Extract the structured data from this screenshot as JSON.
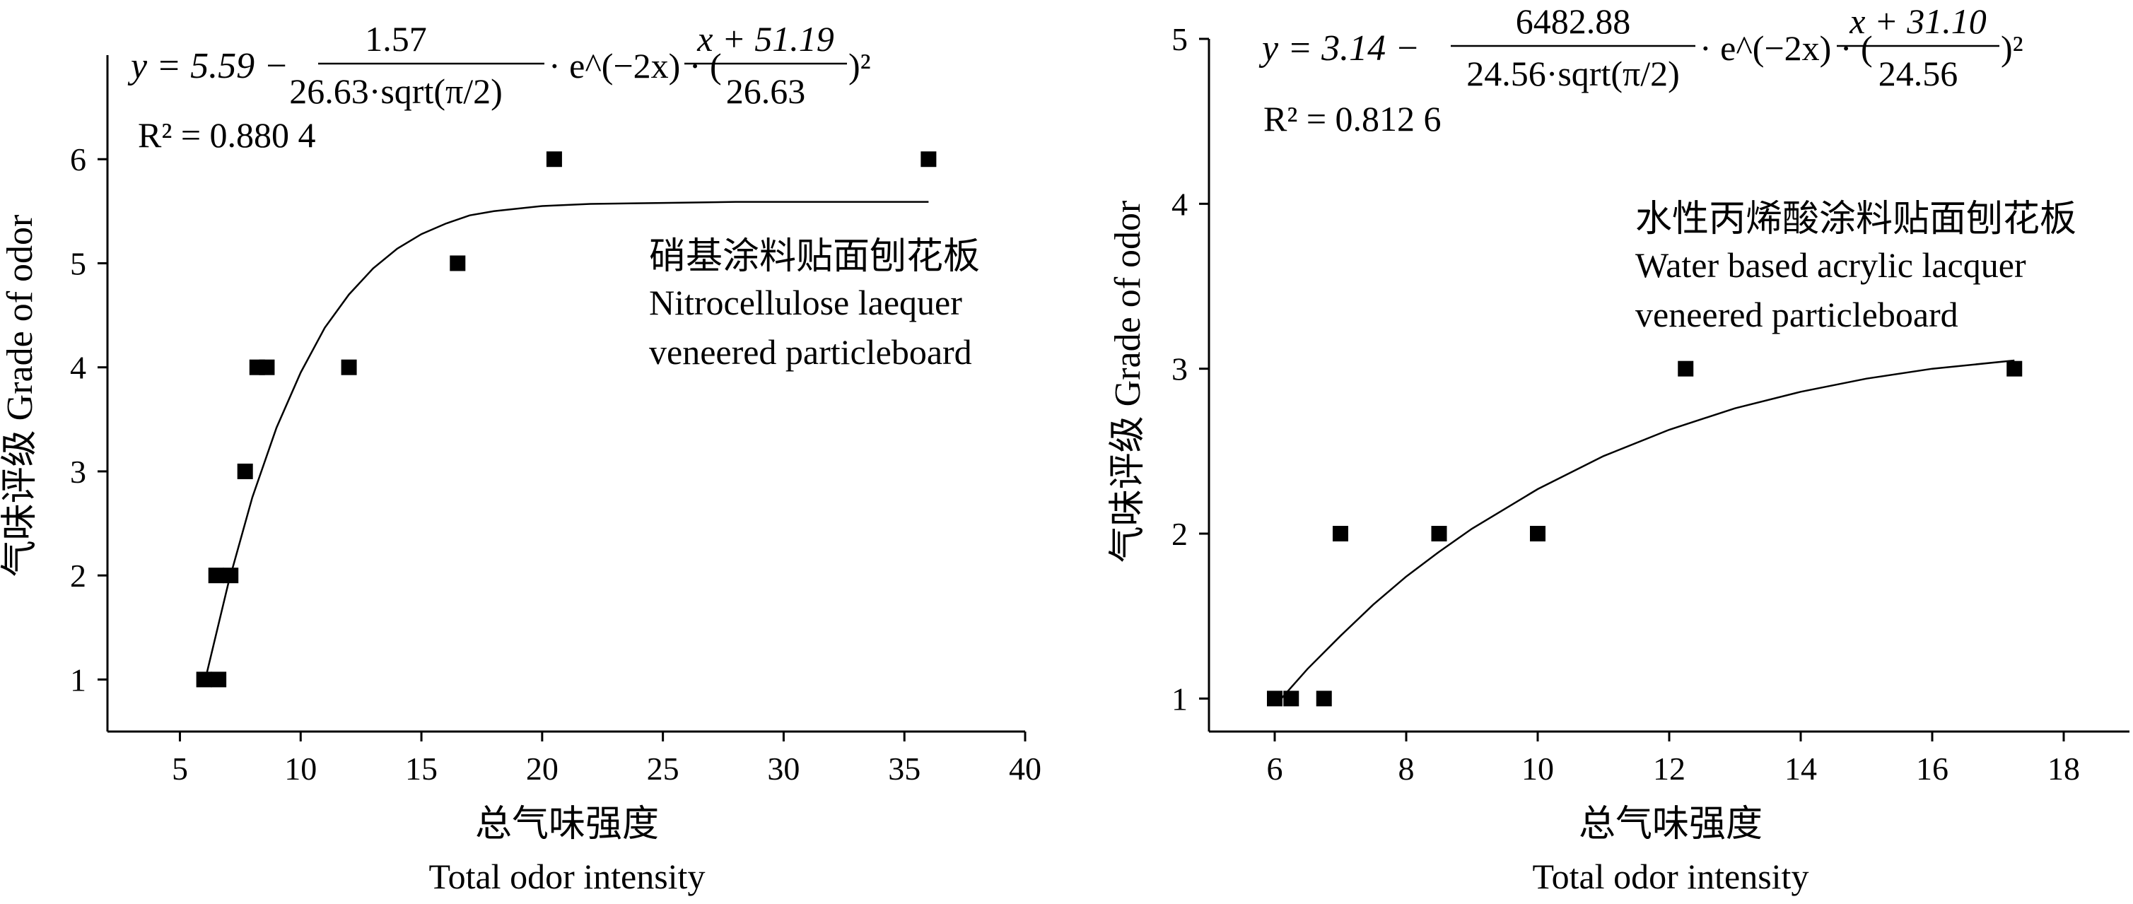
{
  "chart_data": [
    {
      "type": "scatter",
      "xlabel_cn": "总气味强度",
      "xlabel_en": "Total odor intensity",
      "ylabel": "气味评级 Grade of odor",
      "xlim": [
        2,
        40
      ],
      "ylim": [
        0.5,
        7
      ],
      "xticks": [
        5,
        10,
        15,
        20,
        25,
        30,
        35,
        40
      ],
      "yticks": [
        1,
        2,
        3,
        4,
        5,
        6
      ],
      "annotation_cn": "硝基涂料贴面刨花板",
      "annotation_en1": "Nitrocellulose laequer",
      "annotation_en2": "veneered particleboard",
      "r2_label": "R² = 0.880 4",
      "equation": {
        "lhs": "y = 5.59 −",
        "num1": "1.57",
        "den1": "26.63·sqrt(π/2)",
        "mid": "· e^(−2x) · (",
        "num2": "x + 51.19",
        "den2": "26.63",
        "tail": ")²"
      },
      "points": [
        {
          "x": 6.0,
          "y": 1
        },
        {
          "x": 6.6,
          "y": 1
        },
        {
          "x": 6.5,
          "y": 2
        },
        {
          "x": 7.1,
          "y": 2
        },
        {
          "x": 7.7,
          "y": 3
        },
        {
          "x": 8.2,
          "y": 4
        },
        {
          "x": 8.6,
          "y": 4
        },
        {
          "x": 12.0,
          "y": 4
        },
        {
          "x": 16.5,
          "y": 5
        },
        {
          "x": 20.5,
          "y": 6
        },
        {
          "x": 36.0,
          "y": 6
        }
      ],
      "fit": {
        "x": [
          6.0,
          7,
          8,
          9,
          10,
          11,
          12,
          13,
          14,
          15,
          16,
          17,
          18,
          20,
          22,
          25,
          28,
          31,
          34,
          36
        ],
        "y": [
          0.95,
          1.92,
          2.75,
          3.42,
          3.95,
          4.38,
          4.7,
          4.95,
          5.14,
          5.28,
          5.38,
          5.46,
          5.5,
          5.55,
          5.57,
          5.58,
          5.59,
          5.59,
          5.59,
          5.59
        ]
      }
    },
    {
      "type": "scatter",
      "xlabel_cn": "总气味强度",
      "xlabel_en": "Total odor intensity",
      "ylabel": "气味评级 Grade of odor",
      "xlim": [
        5,
        19
      ],
      "ylim": [
        0.8,
        5
      ],
      "xticks": [
        6,
        8,
        10,
        12,
        14,
        16,
        18
      ],
      "yticks": [
        1,
        2,
        3,
        4,
        5
      ],
      "annotation_cn": "水性丙烯酸涂料贴面刨花板",
      "annotation_en1": "Water based acrylic lacquer",
      "annotation_en2": "veneered particleboard",
      "r2_label": "R² = 0.812 6",
      "equation": {
        "lhs": "y = 3.14 −",
        "num1": "6482.88",
        "den1": "24.56·sqrt(π/2)",
        "mid": "· e^(−2x) · (",
        "num2": "x + 31.10",
        "den2": "24.56",
        "tail": ")²"
      },
      "points": [
        {
          "x": 6.0,
          "y": 1
        },
        {
          "x": 6.25,
          "y": 1
        },
        {
          "x": 6.75,
          "y": 1
        },
        {
          "x": 7.0,
          "y": 2
        },
        {
          "x": 8.5,
          "y": 2
        },
        {
          "x": 10.0,
          "y": 2
        },
        {
          "x": 12.25,
          "y": 3
        },
        {
          "x": 17.25,
          "y": 3
        }
      ],
      "fit": {
        "x": [
          6.1,
          6.5,
          7,
          7.5,
          8,
          8.5,
          9,
          10,
          11,
          12,
          13,
          14,
          15,
          16,
          17.25
        ],
        "y": [
          1.0,
          1.18,
          1.38,
          1.57,
          1.74,
          1.89,
          2.03,
          2.27,
          2.47,
          2.63,
          2.76,
          2.86,
          2.94,
          3.0,
          3.05
        ]
      }
    }
  ]
}
